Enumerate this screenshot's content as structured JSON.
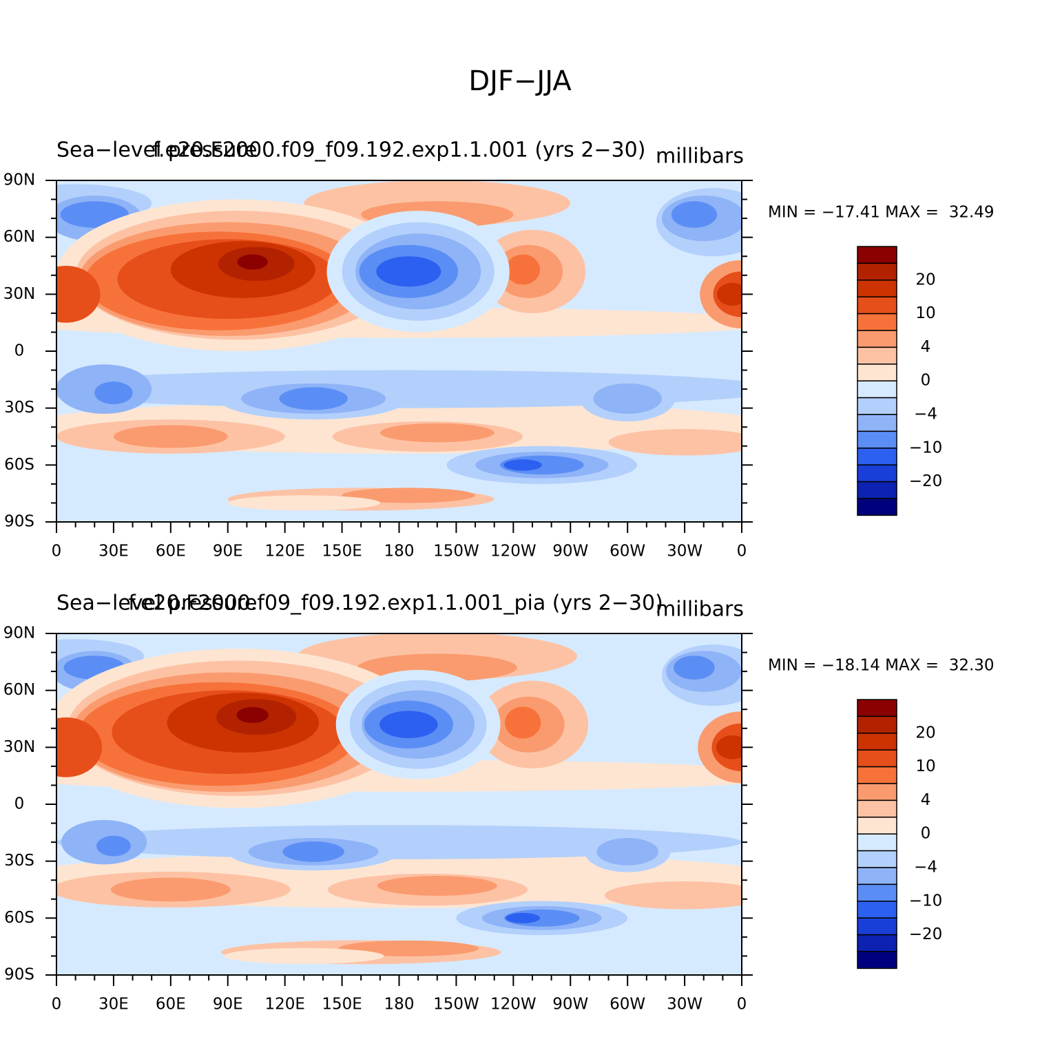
{
  "figure": {
    "title": "DJF−JJA",
    "panels": [
      {
        "left_title": "Sea−level pressure",
        "center_title": "f.e20.F2000.f09_f09.192.exp1.1.001 (yrs 2−30)",
        "units": "millibars",
        "stats": "MIN = −17.41 MAX =  32.49",
        "colorbar_labels": [
          "20",
          "10",
          "4",
          "0",
          "−4",
          "−10",
          "−20"
        ]
      },
      {
        "left_title": "Sea−level pressure",
        "center_title": "f.e20.F2000.f09_f09.192.exp1.1.001_pia (yrs 2−30)",
        "units": "millibars",
        "stats": "MIN = −18.14 MAX =  32.30",
        "colorbar_labels": [
          "20",
          "10",
          "4",
          "0",
          "−4",
          "−10",
          "−20"
        ]
      }
    ],
    "lat_labels": [
      "90N",
      "60N",
      "30N",
      "0",
      "30S",
      "60S",
      "90S"
    ],
    "lon_labels": [
      "0",
      "30E",
      "60E",
      "90E",
      "120E",
      "150E",
      "180",
      "150W",
      "120W",
      "90W",
      "60W",
      "30W",
      "0"
    ],
    "colorbar_colors": [
      "#8b0000",
      "#b22200",
      "#cc3300",
      "#e64e1a",
      "#f7723a",
      "#fa9b6f",
      "#fdc2a4",
      "#fde5d2",
      "#d6eaff",
      "#b3d0fc",
      "#8fb3f7",
      "#5b8ef5",
      "#2c60f0",
      "#1a3fd8",
      "#0d22b0",
      "#00007f"
    ]
  }
}
